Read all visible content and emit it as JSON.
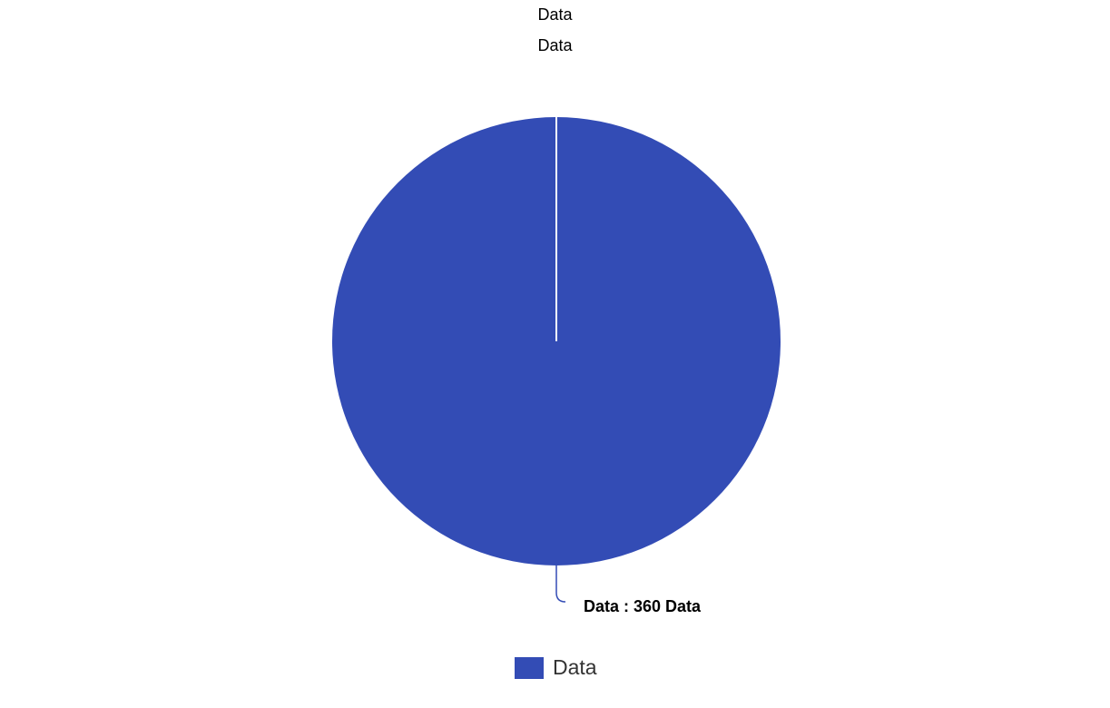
{
  "chart_data": {
    "type": "pie",
    "title": "Data",
    "subtitle": "Data",
    "slices": [
      {
        "label": "Data",
        "value": 360,
        "unit": "Data",
        "color": "#334cb5"
      }
    ],
    "data_label": "Data : 360 Data",
    "legend": {
      "placement": "bottom-center",
      "items": [
        {
          "label": "Data",
          "color": "#334cb5"
        }
      ]
    }
  }
}
